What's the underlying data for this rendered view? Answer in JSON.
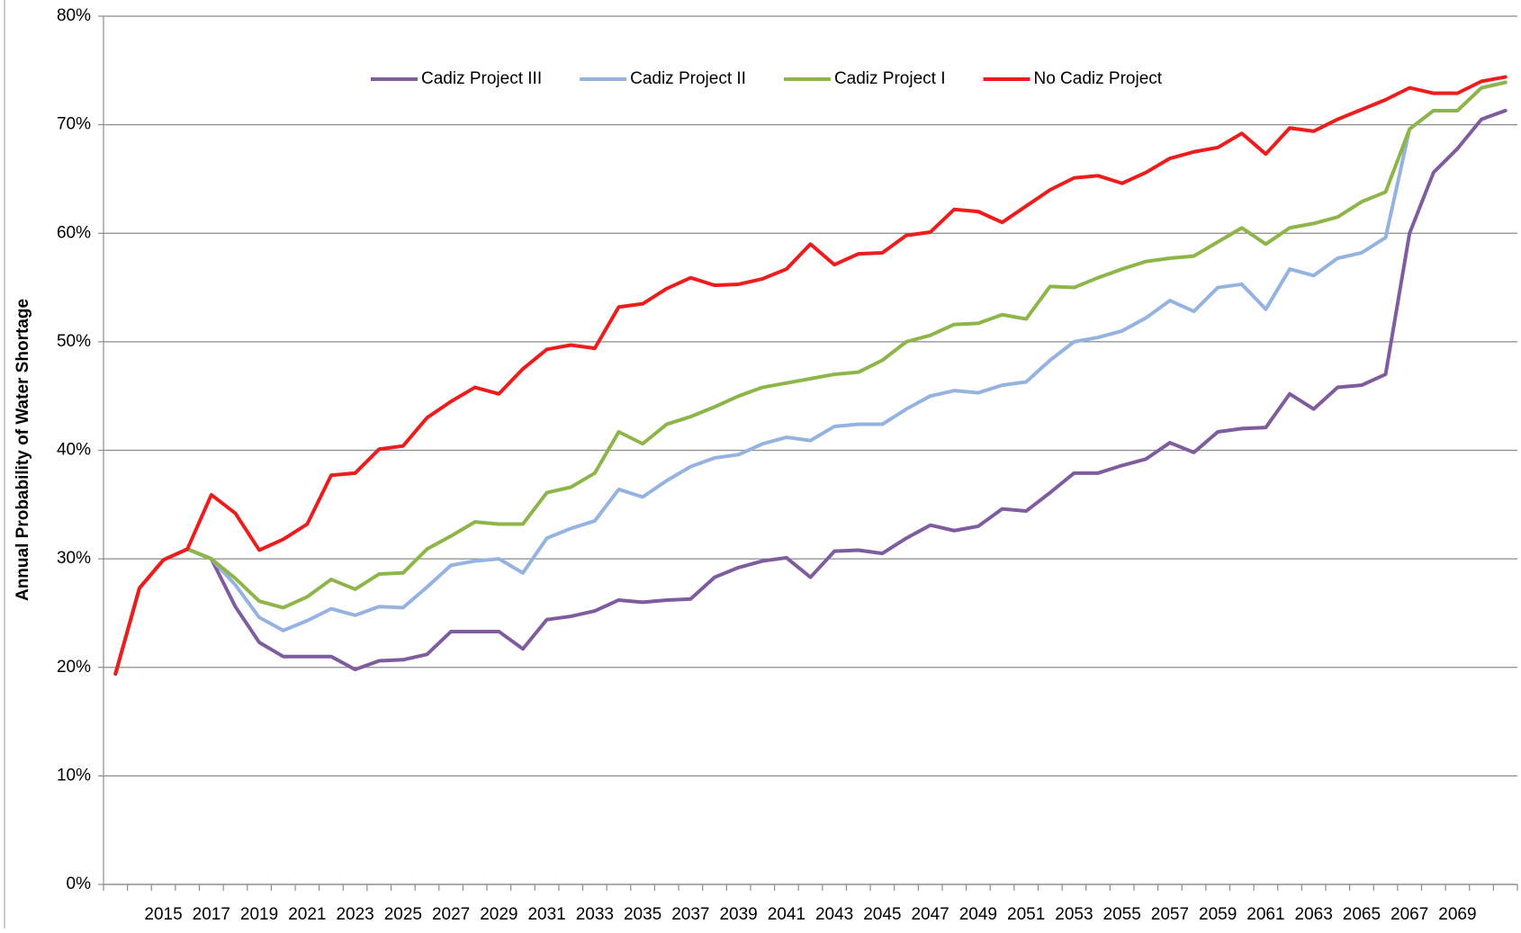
{
  "chart_data": {
    "type": "line",
    "y_label": "Annual Probability of Water Shortage",
    "categories": [
      null,
      null,
      "2015",
      null,
      "2017",
      null,
      "2019",
      null,
      "2021",
      null,
      "2023",
      null,
      "2025",
      null,
      "2027",
      null,
      "2029",
      null,
      "2031",
      null,
      "2033",
      null,
      "2035",
      null,
      "2037",
      null,
      "2039",
      null,
      "2041",
      null,
      "2043",
      null,
      "2045",
      null,
      "2047",
      null,
      "2049",
      null,
      "2051",
      null,
      "2053",
      null,
      "2055",
      null,
      "2057",
      null,
      "2059",
      null,
      "2061",
      null,
      "2063",
      null,
      "2065",
      null,
      "2067",
      null,
      "2069",
      null,
      null
    ],
    "ylim": [
      0,
      80
    ],
    "yticks": [
      {
        "value": 0,
        "label": "0%"
      },
      {
        "value": 10,
        "label": "10%"
      },
      {
        "value": 20,
        "label": "20%"
      },
      {
        "value": 30,
        "label": "30%"
      },
      {
        "value": 40,
        "label": "40%"
      },
      {
        "value": 50,
        "label": "50%"
      },
      {
        "value": 60,
        "label": "60%"
      },
      {
        "value": 70,
        "label": "70%"
      },
      {
        "value": 80,
        "label": "80%"
      }
    ],
    "grid": true,
    "legend": "top",
    "series": [
      {
        "name": "Cadiz Project III",
        "color": "#7e5c9e",
        "values": [
          19.4,
          27.3,
          29.9,
          30.9,
          30.0,
          25.6,
          22.3,
          21.0,
          21.0,
          21.0,
          19.8,
          20.6,
          20.7,
          21.2,
          23.3,
          23.3,
          23.3,
          21.7,
          24.4,
          24.7,
          25.2,
          26.2,
          26.0,
          26.2,
          26.3,
          28.3,
          29.2,
          29.8,
          30.1,
          28.3,
          30.7,
          30.8,
          30.5,
          31.9,
          33.1,
          32.6,
          33.0,
          34.6,
          34.4,
          36.1,
          37.9,
          37.9,
          38.6,
          39.2,
          40.7,
          39.8,
          41.7,
          42.0,
          42.1,
          45.2,
          43.8,
          45.8,
          46.0,
          47.0,
          60.0,
          65.6,
          67.8,
          70.5,
          71.3
        ]
      },
      {
        "name": "Cadiz Project II",
        "color": "#95b3e0",
        "values": [
          19.4,
          27.3,
          29.9,
          30.9,
          30.0,
          27.6,
          24.6,
          23.4,
          24.3,
          25.4,
          24.8,
          25.6,
          25.5,
          27.4,
          29.4,
          29.8,
          30.0,
          28.7,
          31.9,
          32.8,
          33.5,
          36.4,
          35.7,
          37.2,
          38.5,
          39.3,
          39.6,
          40.6,
          41.2,
          40.9,
          42.2,
          42.4,
          42.4,
          43.8,
          45.0,
          45.5,
          45.3,
          46.0,
          46.3,
          48.3,
          50.0,
          50.4,
          51.0,
          52.2,
          53.8,
          52.8,
          55.0,
          55.3,
          53.0,
          56.7,
          56.1,
          57.7,
          58.2,
          59.6,
          69.6,
          71.3,
          71.3,
          73.4,
          73.9
        ]
      },
      {
        "name": "Cadiz Project I",
        "color": "#8db548",
        "values": [
          19.4,
          27.3,
          29.9,
          30.9,
          30.0,
          28.2,
          26.1,
          25.5,
          26.5,
          28.1,
          27.2,
          28.6,
          28.7,
          30.9,
          32.1,
          33.4,
          33.2,
          33.2,
          36.1,
          36.6,
          37.9,
          41.7,
          40.6,
          42.4,
          43.1,
          44.0,
          45.0,
          45.8,
          46.2,
          46.6,
          47.0,
          47.2,
          48.3,
          50.0,
          50.6,
          51.6,
          51.7,
          52.5,
          52.1,
          55.1,
          55.0,
          55.9,
          56.7,
          57.4,
          57.7,
          57.9,
          59.2,
          60.5,
          59.0,
          60.5,
          60.9,
          61.5,
          62.9,
          63.8,
          69.6,
          71.3,
          71.3,
          73.4,
          73.9
        ]
      },
      {
        "name": "No Cadiz Project",
        "color": "#ee1c1c",
        "values": [
          19.4,
          27.3,
          29.9,
          30.9,
          35.9,
          34.2,
          30.8,
          31.8,
          33.2,
          37.7,
          37.9,
          40.1,
          40.4,
          43.0,
          44.5,
          45.8,
          45.2,
          47.5,
          49.3,
          49.7,
          49.4,
          53.2,
          53.5,
          54.9,
          55.9,
          55.2,
          55.3,
          55.8,
          56.7,
          59.0,
          57.1,
          58.1,
          58.2,
          59.8,
          60.1,
          62.2,
          62.0,
          61.0,
          62.5,
          64.0,
          65.1,
          65.3,
          64.6,
          65.6,
          66.9,
          67.5,
          67.9,
          69.2,
          67.3,
          69.7,
          69.4,
          70.5,
          71.4,
          72.3,
          73.4,
          72.9,
          72.9,
          74.0,
          74.4
        ]
      }
    ]
  }
}
